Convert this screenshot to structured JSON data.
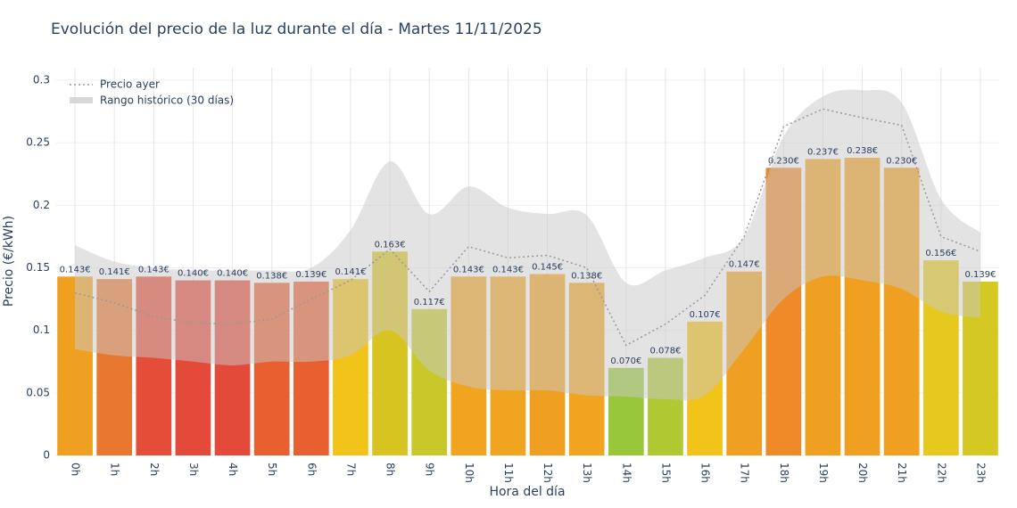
{
  "chart_data": {
    "type": "bar",
    "title": "Evolución del precio de la luz durante el día - Martes 11/11/2025",
    "x_label": "Hora del día",
    "y_label": "Precio (€/kWh)",
    "categories": [
      "0h",
      "1h",
      "2h",
      "3h",
      "4h",
      "5h",
      "6h",
      "7h",
      "8h",
      "9h",
      "10h",
      "11h",
      "12h",
      "13h",
      "14h",
      "15h",
      "16h",
      "17h",
      "18h",
      "19h",
      "20h",
      "21h",
      "22h",
      "23h"
    ],
    "values": [
      0.143,
      0.141,
      0.143,
      0.14,
      0.14,
      0.138,
      0.139,
      0.141,
      0.163,
      0.117,
      0.143,
      0.143,
      0.145,
      0.138,
      0.07,
      0.078,
      0.107,
      0.147,
      0.23,
      0.237,
      0.238,
      0.23,
      0.156,
      0.139
    ],
    "value_labels": [
      "0.143€",
      "0.141€",
      "0.143€",
      "0.140€",
      "0.140€",
      "0.138€",
      "0.139€",
      "0.141€",
      "0.163€",
      "0.117€",
      "0.143€",
      "0.143€",
      "0.145€",
      "0.138€",
      "0.070€",
      "0.078€",
      "0.107€",
      "0.147€",
      "0.230€",
      "0.237€",
      "0.238€",
      "0.230€",
      "0.156€",
      "0.139€"
    ],
    "colors": [
      "#f0a020",
      "#e87830",
      "#e44d38",
      "#e34a3a",
      "#e34a3a",
      "#e86030",
      "#e86030",
      "#f2c318",
      "#d8c420",
      "#c8c82a",
      "#f0a420",
      "#f0a420",
      "#f0a020",
      "#f0a420",
      "#98c83a",
      "#b0c832",
      "#f2c318",
      "#f0a020",
      "#ee8a28",
      "#f0a020",
      "#f0a020",
      "#f0a020",
      "#e6c81e",
      "#d4c822"
    ],
    "line": {
      "name": "Precio ayer",
      "color": "#999999",
      "values": [
        0.13,
        0.122,
        0.111,
        0.106,
        0.105,
        0.109,
        0.125,
        0.14,
        0.165,
        0.131,
        0.167,
        0.158,
        0.16,
        0.15,
        0.088,
        0.105,
        0.128,
        0.175,
        0.263,
        0.277,
        0.27,
        0.264,
        0.175,
        0.163
      ]
    },
    "band": {
      "name": "Rango histórico (30 días)",
      "color": "#c8c8c8",
      "upper": [
        0.168,
        0.155,
        0.15,
        0.148,
        0.148,
        0.148,
        0.15,
        0.18,
        0.235,
        0.193,
        0.215,
        0.198,
        0.193,
        0.192,
        0.138,
        0.148,
        0.158,
        0.175,
        0.255,
        0.287,
        0.292,
        0.282,
        0.205,
        0.178
      ],
      "lower": [
        0.085,
        0.08,
        0.078,
        0.075,
        0.072,
        0.075,
        0.075,
        0.08,
        0.1,
        0.068,
        0.055,
        0.052,
        0.052,
        0.048,
        0.047,
        0.045,
        0.048,
        0.085,
        0.125,
        0.143,
        0.14,
        0.133,
        0.115,
        0.11
      ]
    },
    "ylim": [
      0,
      0.31
    ],
    "yticks": [
      0,
      0.05,
      0.1,
      0.15,
      0.2,
      0.25,
      0.3
    ],
    "grid": true,
    "legend": "top-left"
  }
}
